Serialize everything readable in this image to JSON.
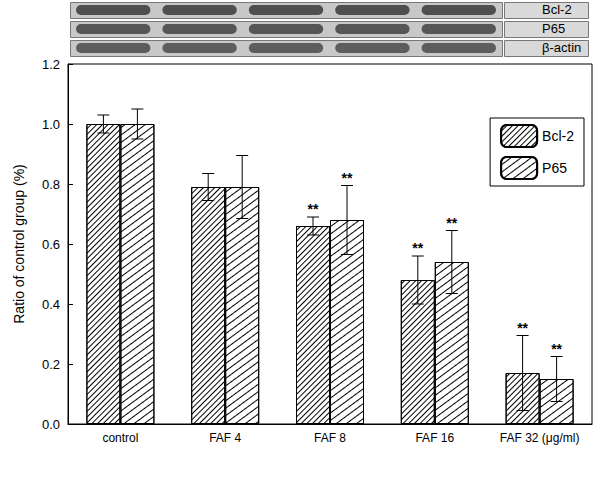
{
  "chart_data": {
    "type": "bar",
    "blot_labels": [
      "Bcl-2",
      "P65",
      "β-actin"
    ],
    "y_label": "Ratio of control group (%)",
    "categories": [
      "control",
      "FAF 4",
      "FAF 8",
      "FAF 16",
      "FAF 32 (μg/ml)"
    ],
    "series": [
      {
        "name": "Bcl-2",
        "color": "#000000",
        "values": [
          1.0,
          0.79,
          0.66,
          0.48,
          0.17
        ],
        "errors": [
          0.03,
          0.045,
          0.03,
          0.08,
          0.125
        ],
        "annotations": [
          null,
          null,
          "**",
          "**",
          "**"
        ]
      },
      {
        "name": "P65",
        "color": "#000000",
        "values": [
          1.0,
          0.79,
          0.68,
          0.54,
          0.15
        ],
        "errors": [
          0.05,
          0.105,
          0.115,
          0.105,
          0.075
        ],
        "annotations": [
          null,
          null,
          "**",
          "**",
          "**"
        ]
      }
    ],
    "ylim": [
      0,
      1.2
    ],
    "yticks": [
      {
        "value": 0,
        "label": "0.0"
      },
      0.2,
      0.4,
      0.6,
      0.8,
      {
        "value": 1,
        "label": "1.0"
      },
      1.2
    ],
    "legend": "upper right",
    "grid": false
  }
}
